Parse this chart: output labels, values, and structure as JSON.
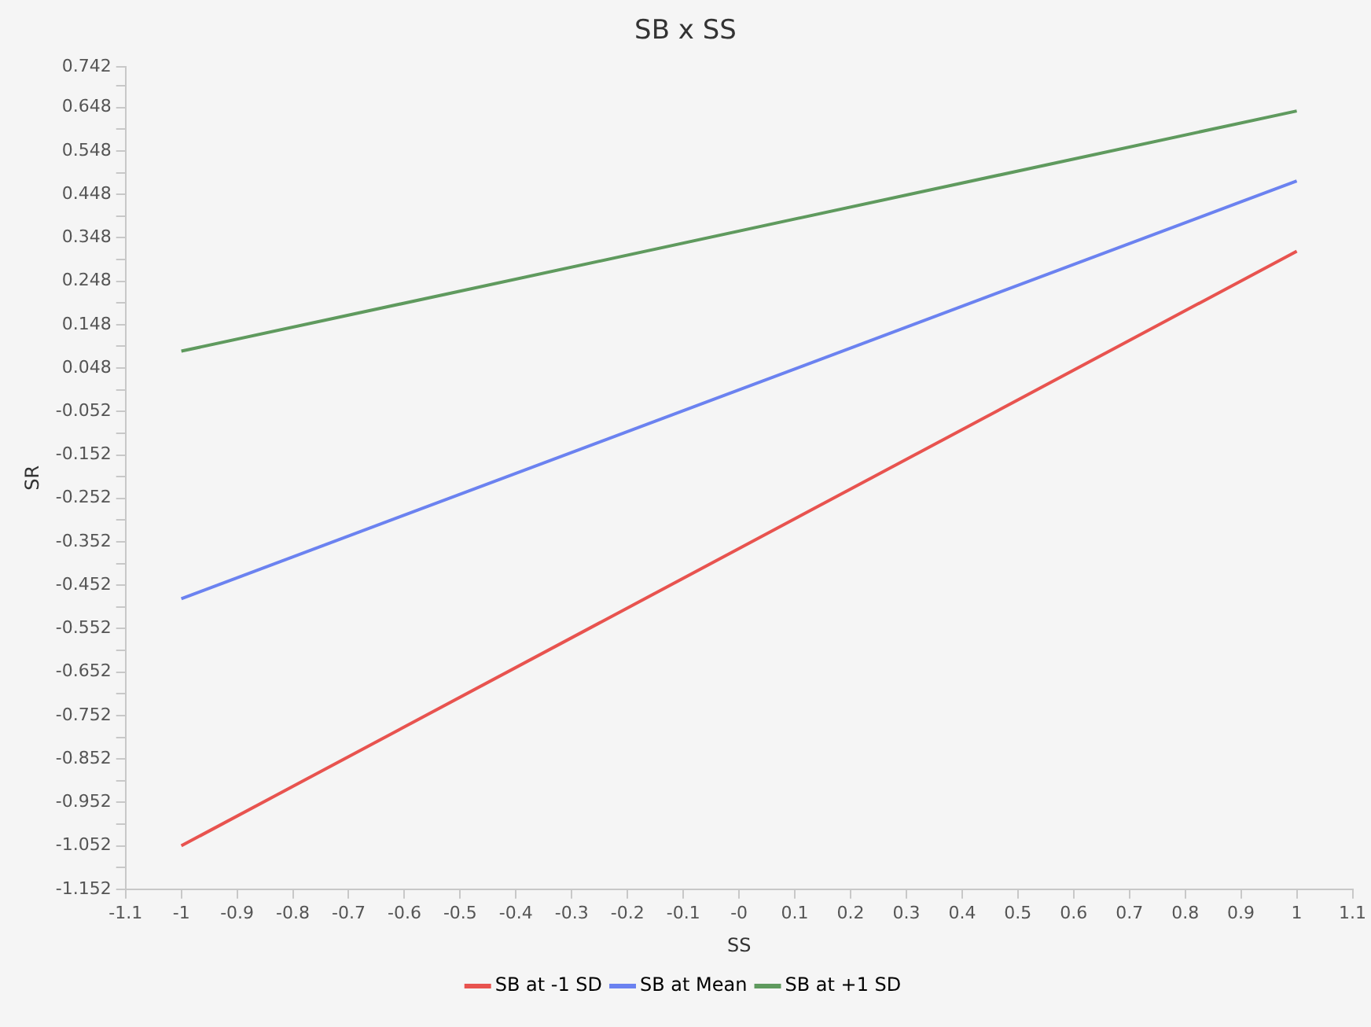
{
  "chart_data": {
    "type": "line",
    "title": "SB x SS",
    "xlabel": "SS",
    "ylabel": "SR",
    "x": [
      -1,
      1
    ],
    "series": [
      {
        "name": "SB at -1 SD",
        "color": "#e8534f",
        "values": [
          -1.052,
          0.317
        ]
      },
      {
        "name": "SB at Mean",
        "color": "#6b82f0",
        "values": [
          -0.483,
          0.479
        ]
      },
      {
        "name": "SB at +1 SD",
        "color": "#5f9a5e",
        "values": [
          0.087,
          0.64
        ]
      }
    ],
    "xlim": [
      -1.1,
      1.1
    ],
    "xticks": [
      -1.1,
      -1,
      -0.9,
      -0.8,
      -0.7,
      -0.6,
      -0.5,
      -0.4,
      -0.3,
      -0.2,
      -0.1,
      {
        "value": 0,
        "label": "-0"
      },
      0.1,
      0.2,
      0.3,
      0.4,
      0.5,
      0.6,
      0.7,
      0.8,
      0.9,
      1,
      1.1
    ],
    "ylim": [
      -1.152,
      0.742
    ],
    "yticks": [
      -1.152,
      {
        "value": -1.102,
        "label": null
      },
      -1.052,
      {
        "value": -1.002,
        "label": null
      },
      -0.952,
      {
        "value": -0.902,
        "label": null
      },
      -0.852,
      {
        "value": -0.802,
        "label": null
      },
      -0.752,
      {
        "value": -0.702,
        "label": null
      },
      -0.652,
      {
        "value": -0.602,
        "label": null
      },
      -0.552,
      {
        "value": -0.502,
        "label": null
      },
      -0.452,
      {
        "value": -0.402,
        "label": null
      },
      -0.352,
      {
        "value": -0.302,
        "label": null
      },
      -0.252,
      {
        "value": -0.202,
        "label": null
      },
      -0.152,
      {
        "value": -0.102,
        "label": null
      },
      -0.052,
      {
        "value": -0.002,
        "label": null
      },
      0.048,
      {
        "value": 0.098,
        "label": null
      },
      0.148,
      {
        "value": 0.198,
        "label": null
      },
      0.248,
      {
        "value": 0.298,
        "label": null
      },
      0.348,
      {
        "value": 0.398,
        "label": null
      },
      0.448,
      {
        "value": 0.498,
        "label": null
      },
      0.548,
      {
        "value": 0.598,
        "label": null
      },
      0.648,
      {
        "value": 0.698,
        "label": null
      },
      0.742
    ],
    "grid": false,
    "legend": "bottom",
    "marker": "none",
    "line_style": "solid"
  }
}
